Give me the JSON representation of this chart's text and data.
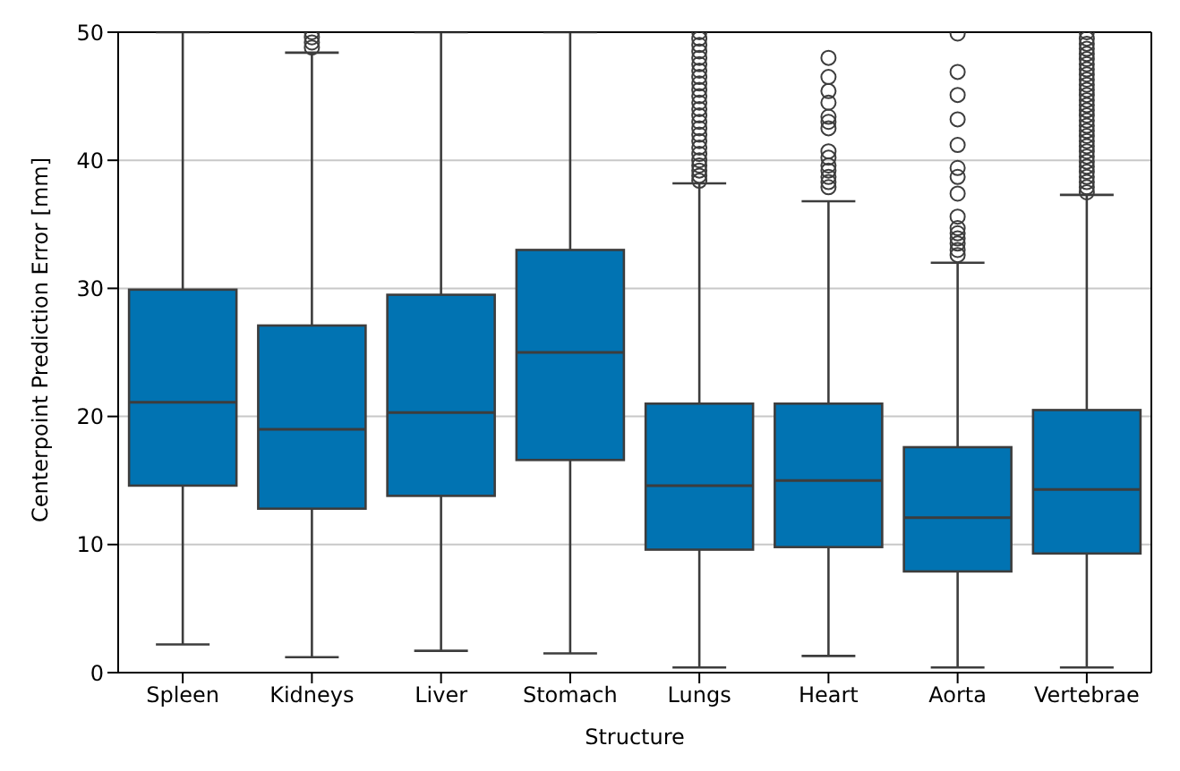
{
  "chart_data": {
    "type": "box",
    "xlabel": "Structure",
    "ylabel": "Centerpoint Prediction Error [mm]",
    "categories": [
      "Spleen",
      "Kidneys",
      "Liver",
      "Stomach",
      "Lungs",
      "Heart",
      "Aorta",
      "Vertebrae"
    ],
    "color": "#0173b2",
    "ylim": [
      0,
      50
    ],
    "yticks": [
      0,
      10,
      20,
      30,
      40,
      50
    ],
    "grid": "y",
    "marker": "circle",
    "boxes": [
      {
        "low": 2.2,
        "q1": 14.6,
        "median": 21.1,
        "q3": 29.9,
        "high": 50
      },
      {
        "low": 1.2,
        "q1": 12.8,
        "median": 19.0,
        "q3": 27.1,
        "high": 48.4,
        "outliers": [
          48.8,
          49.2,
          49.6,
          50
        ]
      },
      {
        "low": 1.7,
        "q1": 13.8,
        "median": 20.3,
        "q3": 29.5,
        "high": 50
      },
      {
        "low": 1.5,
        "q1": 16.6,
        "median": 25.0,
        "q3": 33.0,
        "high": 50
      },
      {
        "low": 0.4,
        "q1": 9.6,
        "median": 14.6,
        "q3": 21.0,
        "high": 38.2,
        "outliers": [
          38.4,
          38.8,
          39.2,
          39.6,
          40,
          40.5,
          41,
          41.5,
          42,
          42.5,
          43,
          43.5,
          44,
          44.5,
          45,
          45.5,
          46,
          46.5,
          47,
          47.5,
          48,
          48.5,
          49,
          49.5,
          50
        ]
      },
      {
        "low": 1.3,
        "q1": 9.8,
        "median": 15.0,
        "q3": 21.0,
        "high": 36.8,
        "outliers": [
          37.9,
          38.3,
          38.7,
          39.2,
          39.6,
          40.2,
          40.7,
          42.5,
          43.0,
          43.4,
          44.5,
          45.4,
          46.5,
          48.0
        ]
      },
      {
        "low": 0.4,
        "q1": 7.9,
        "median": 12.1,
        "q3": 17.6,
        "high": 32.0,
        "outliers": [
          32.6,
          33.0,
          33.5,
          33.9,
          34.3,
          34.7,
          35.6,
          37.4,
          38.7,
          39.4,
          41.2,
          43.2,
          45.1,
          46.9,
          49.9
        ]
      },
      {
        "low": 0.4,
        "q1": 9.3,
        "median": 14.3,
        "q3": 20.5,
        "high": 37.3,
        "outliers": [
          37.5,
          37.9,
          38.3,
          38.7,
          39.1,
          39.5,
          39.9,
          40.3,
          40.7,
          41.1,
          41.5,
          41.9,
          42.3,
          42.7,
          43.1,
          43.5,
          43.9,
          44.3,
          44.7,
          45.1,
          45.5,
          45.9,
          46.3,
          46.7,
          47.1,
          47.5,
          47.9,
          48.3,
          48.7,
          49.1,
          49.5,
          50
        ]
      }
    ]
  }
}
